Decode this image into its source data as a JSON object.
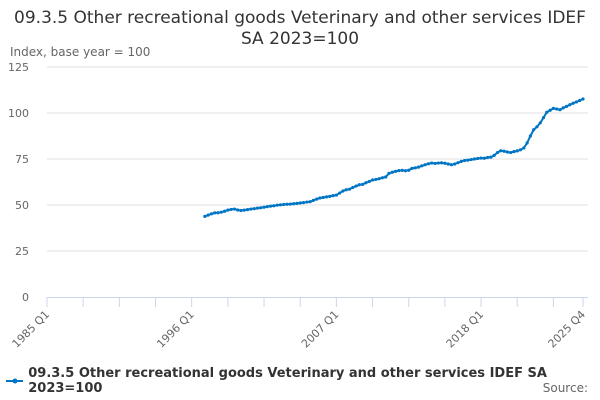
{
  "title": "09.3.5 Other recreational goods Veterinary and other services IDEF SA 2023=100",
  "source_label": "Source:",
  "chart_data": {
    "type": "line",
    "title": "09.3.5 Other recreational goods Veterinary and other services IDEF SA 2023=100",
    "ylabel": "Index, base year = 100",
    "xlabel": "",
    "ylim": [
      0,
      125
    ],
    "yticks": [
      0,
      25,
      50,
      75,
      100,
      125
    ],
    "xlim": [
      "1985 Q1",
      "2025 Q4"
    ],
    "xtick_labels": [
      "1985 Q1",
      "1996 Q1",
      "2007 Q1",
      "2018 Q1",
      "2025 Q4"
    ],
    "grid": true,
    "legend_position": "bottom",
    "color": "#0075c4",
    "series": [
      {
        "name": "09.3.5 Other recreational goods Veterinary and other services IDEF SA 2023=100",
        "start": "1997 Q1",
        "frequency": "quarterly",
        "values": [
          43.8,
          44.5,
          45.2,
          45.7,
          45.8,
          46.1,
          46.6,
          47.2,
          47.6,
          47.8,
          47.3,
          47.0,
          47.2,
          47.5,
          47.8,
          48.0,
          48.3,
          48.5,
          48.8,
          49.1,
          49.4,
          49.6,
          49.9,
          50.1,
          50.3,
          50.4,
          50.5,
          50.7,
          50.9,
          51.1,
          51.3,
          51.6,
          51.8,
          52.5,
          53.2,
          53.8,
          54.1,
          54.4,
          54.7,
          55.1,
          55.4,
          56.5,
          57.6,
          58.3,
          58.6,
          59.5,
          60.3,
          61.0,
          61.2,
          62.1,
          62.8,
          63.6,
          63.9,
          64.3,
          64.8,
          65.2,
          67.2,
          67.8,
          68.3,
          68.7,
          68.8,
          68.6,
          68.9,
          69.9,
          70.2,
          70.6,
          71.3,
          71.9,
          72.4,
          72.8,
          72.6,
          72.8,
          72.9,
          72.7,
          72.3,
          71.9,
          72.3,
          73.0,
          73.7,
          74.2,
          74.4,
          74.7,
          75.0,
          75.3,
          75.5,
          75.4,
          75.8,
          76.0,
          77.0,
          78.5,
          79.5,
          79.2,
          78.8,
          78.5,
          79.0,
          79.4,
          80.0,
          81.0,
          83.7,
          87.5,
          90.9,
          92.5,
          94.6,
          97.5,
          100.4,
          101.5,
          102.5,
          102.2,
          101.8,
          102.8,
          103.6,
          104.5,
          105.3,
          106.0,
          106.8,
          107.6
        ]
      }
    ]
  }
}
